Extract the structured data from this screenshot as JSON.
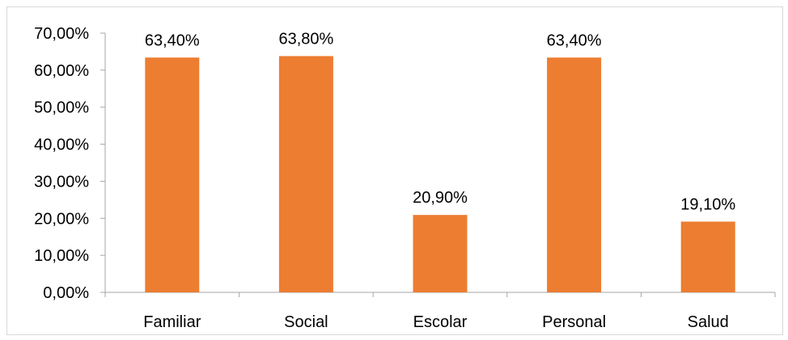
{
  "chart_data": {
    "type": "bar",
    "categories": [
      "Familiar",
      "Social",
      "Escolar",
      "Personal",
      "Salud"
    ],
    "values": [
      63.4,
      63.8,
      20.9,
      63.4,
      19.1
    ],
    "value_labels": [
      "63,40%",
      "63,80%",
      "20,90%",
      "63,40%",
      "19,10%"
    ],
    "ylim": [
      0,
      70
    ],
    "y_ticks": [
      0,
      10,
      20,
      30,
      40,
      50,
      60,
      70
    ],
    "y_tick_labels": [
      "0,00%",
      "10,00%",
      "20,00%",
      "30,00%",
      "40,00%",
      "50,00%",
      "60,00%",
      "70,00%"
    ],
    "grid": false,
    "legend": "none",
    "colors": {
      "bar": "#ED7D31",
      "axis": "#A6A6A6",
      "border": "#D9D9D9",
      "text": "#000000"
    }
  }
}
